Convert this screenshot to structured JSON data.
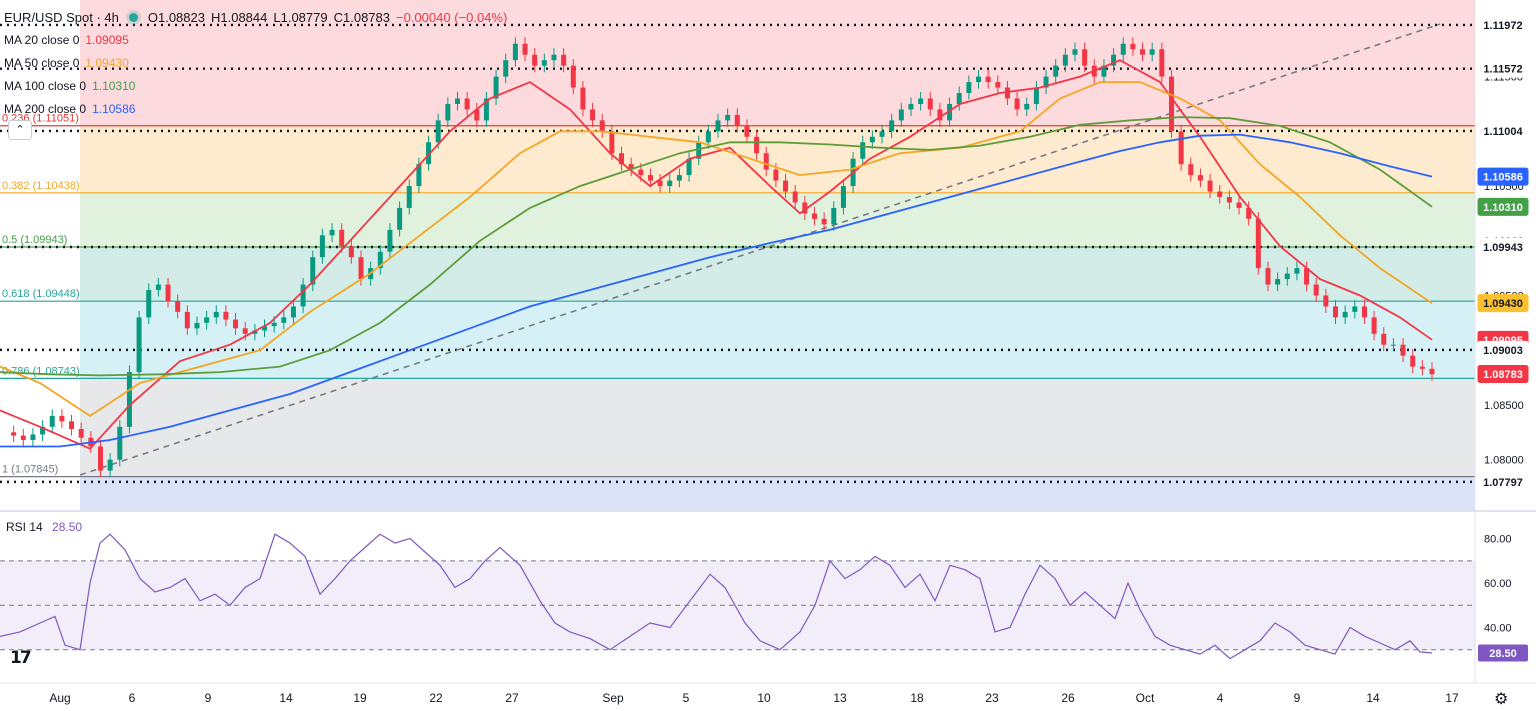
{
  "chart_data": [
    {
      "type": "candlestick",
      "title": "EUR/USD Spot · 4h",
      "ohlc": {
        "open": "O1.08823",
        "high": "H1.08844",
        "low": "L1.08779",
        "close": "C1.08783",
        "change": "−0.00040 (−0.04%)"
      },
      "ylim": [
        1.0754,
        1.122
      ],
      "x_ticks": [
        "Aug",
        "6",
        "9",
        "14",
        "19",
        "22",
        "27",
        "Sep",
        "5",
        "10",
        "13",
        "18",
        "23",
        "26",
        "Oct",
        "4",
        "9",
        "14",
        "17"
      ],
      "y_ticks": [
        "1.11500",
        "1.11000",
        "1.10500",
        "1.10000",
        "1.09500",
        "1.09000",
        "1.08500",
        "1.08000"
      ],
      "moving_averages": [
        {
          "name": "MA 20 close 0",
          "value": "1.09095",
          "color": "#f23645",
          "points": [
            [
              0,
              1.0845
            ],
            [
              40,
              1.083
            ],
            [
              90,
              1.081
            ],
            [
              130,
              1.085
            ],
            [
              180,
              1.089
            ],
            [
              230,
              1.0905
            ],
            [
              270,
              1.0925
            ],
            [
              310,
              1.096
            ],
            [
              360,
              1.101
            ],
            [
              410,
              1.106
            ],
            [
              450,
              1.11
            ],
            [
              490,
              1.113
            ],
            [
              530,
              1.1145
            ],
            [
              570,
              1.112
            ],
            [
              610,
              1.108
            ],
            [
              650,
              1.105
            ],
            [
              690,
              1.1075
            ],
            [
              730,
              1.1085
            ],
            [
              770,
              1.105
            ],
            [
              800,
              1.1025
            ],
            [
              830,
              1.1045
            ],
            [
              870,
              1.1075
            ],
            [
              910,
              1.1095
            ],
            [
              960,
              1.1125
            ],
            [
              1000,
              1.1135
            ],
            [
              1040,
              1.114
            ],
            [
              1080,
              1.115
            ],
            [
              1120,
              1.1165
            ],
            [
              1160,
              1.1145
            ],
            [
              1200,
              1.1095
            ],
            [
              1240,
              1.104
            ],
            [
              1280,
              1.0995
            ],
            [
              1320,
              1.0965
            ],
            [
              1360,
              1.095
            ],
            [
              1400,
              1.093
            ],
            [
              1432,
              1.09095
            ]
          ]
        },
        {
          "name": "MA 50 close 0",
          "value": "1.09430",
          "color": "#f5a623",
          "points": [
            [
              0,
              1.0885
            ],
            [
              40,
              1.087
            ],
            [
              90,
              1.084
            ],
            [
              140,
              1.087
            ],
            [
              200,
              1.0885
            ],
            [
              260,
              1.09
            ],
            [
              310,
              1.0935
            ],
            [
              370,
              1.097
            ],
            [
              420,
              1.1005
            ],
            [
              470,
              1.104
            ],
            [
              520,
              1.108
            ],
            [
              560,
              1.11
            ],
            [
              600,
              1.11
            ],
            [
              650,
              1.1095
            ],
            [
              700,
              1.109
            ],
            [
              750,
              1.1075
            ],
            [
              800,
              1.106
            ],
            [
              850,
              1.1065
            ],
            [
              900,
              1.108
            ],
            [
              960,
              1.1085
            ],
            [
              1020,
              1.11
            ],
            [
              1060,
              1.113
            ],
            [
              1100,
              1.1145
            ],
            [
              1140,
              1.1145
            ],
            [
              1180,
              1.113
            ],
            [
              1220,
              1.111
            ],
            [
              1260,
              1.107
            ],
            [
              1300,
              1.104
            ],
            [
              1340,
              1.1005
            ],
            [
              1380,
              1.0975
            ],
            [
              1432,
              1.0943
            ]
          ]
        },
        {
          "name": "MA 100 close 0",
          "value": "1.10310",
          "color": "#5d9c3a",
          "points": [
            [
              0,
              1.088
            ],
            [
              50,
              1.0878
            ],
            [
              100,
              1.0877
            ],
            [
              160,
              1.0878
            ],
            [
              220,
              1.088
            ],
            [
              280,
              1.0885
            ],
            [
              330,
              1.09
            ],
            [
              380,
              1.0925
            ],
            [
              430,
              1.096
            ],
            [
              480,
              1.1
            ],
            [
              530,
              1.103
            ],
            [
              580,
              1.105
            ],
            [
              630,
              1.1065
            ],
            [
              680,
              1.108
            ],
            [
              730,
              1.109
            ],
            [
              780,
              1.109
            ],
            [
              830,
              1.1088
            ],
            [
              880,
              1.1085
            ],
            [
              930,
              1.1083
            ],
            [
              980,
              1.1087
            ],
            [
              1030,
              1.1095
            ],
            [
              1080,
              1.1106
            ],
            [
              1130,
              1.111
            ],
            [
              1180,
              1.1113
            ],
            [
              1230,
              1.1112
            ],
            [
              1280,
              1.1105
            ],
            [
              1330,
              1.109
            ],
            [
              1380,
              1.1065
            ],
            [
              1432,
              1.1031
            ]
          ]
        },
        {
          "name": "MA 200 close 0",
          "value": "1.10586",
          "color": "#2962ff",
          "points": [
            [
              0,
              1.0812
            ],
            [
              60,
              1.0812
            ],
            [
              110,
              1.0818
            ],
            [
              170,
              1.083
            ],
            [
              230,
              1.0845
            ],
            [
              290,
              1.086
            ],
            [
              350,
              1.088
            ],
            [
              410,
              1.09
            ],
            [
              470,
              1.092
            ],
            [
              530,
              1.094
            ],
            [
              590,
              1.0955
            ],
            [
              650,
              1.097
            ],
            [
              710,
              1.0985
            ],
            [
              770,
              1.0998
            ],
            [
              830,
              1.101
            ],
            [
              890,
              1.1025
            ],
            [
              950,
              1.104
            ],
            [
              1010,
              1.1055
            ],
            [
              1070,
              1.107
            ],
            [
              1120,
              1.1082
            ],
            [
              1160,
              1.109
            ],
            [
              1200,
              1.1096
            ],
            [
              1240,
              1.1097
            ],
            [
              1290,
              1.109
            ],
            [
              1340,
              1.108
            ],
            [
              1390,
              1.1068
            ],
            [
              1432,
              1.10586
            ]
          ]
        }
      ],
      "candles_close": [
        1.0825,
        1.0822,
        1.0818,
        1.0823,
        1.083,
        1.084,
        1.0835,
        1.0828,
        1.082,
        1.0812,
        1.079,
        1.08,
        1.083,
        1.088,
        1.093,
        1.0955,
        1.096,
        1.0945,
        1.0935,
        1.092,
        1.0925,
        1.093,
        1.0935,
        1.0928,
        1.092,
        1.0915,
        1.0918,
        1.0922,
        1.0925,
        1.093,
        1.094,
        1.096,
        1.0985,
        1.1005,
        1.101,
        1.0995,
        1.0985,
        1.0965,
        1.0975,
        1.099,
        1.101,
        1.103,
        1.105,
        1.107,
        1.109,
        1.111,
        1.1125,
        1.113,
        1.112,
        1.111,
        1.113,
        1.115,
        1.1165,
        1.118,
        1.117,
        1.116,
        1.1165,
        1.117,
        1.116,
        1.114,
        1.112,
        1.111,
        1.11,
        1.108,
        1.107,
        1.1065,
        1.106,
        1.1055,
        1.105,
        1.1055,
        1.106,
        1.1075,
        1.109,
        1.11,
        1.111,
        1.1115,
        1.1105,
        1.1095,
        1.108,
        1.1065,
        1.1055,
        1.1045,
        1.1035,
        1.1025,
        1.102,
        1.1015,
        1.103,
        1.105,
        1.1075,
        1.109,
        1.1095,
        1.11,
        1.111,
        1.112,
        1.1125,
        1.113,
        1.112,
        1.111,
        1.1125,
        1.1135,
        1.1145,
        1.115,
        1.1145,
        1.114,
        1.113,
        1.112,
        1.1125,
        1.114,
        1.115,
        1.116,
        1.117,
        1.1175,
        1.116,
        1.115,
        1.116,
        1.117,
        1.118,
        1.1175,
        1.117,
        1.1175,
        1.115,
        1.11,
        1.107,
        1.106,
        1.1055,
        1.1045,
        1.104,
        1.1035,
        1.103,
        1.102,
        1.0975,
        1.096,
        1.0965,
        1.097,
        1.0975,
        1.096,
        1.095,
        1.094,
        1.093,
        1.0935,
        1.094,
        1.093,
        1.0915,
        1.0905,
        1.0905,
        1.0895,
        1.0885,
        1.0883,
        1.0878
      ],
      "fib_levels": [
        {
          "label": "0.236 (1.11051)",
          "value": 1.11051
        },
        {
          "label": "0.382 (1.10438)",
          "value": 1.10438
        },
        {
          "label": "0.5 (1.09943)",
          "value": 1.09943
        },
        {
          "label": "0.618 (1.09448)",
          "value": 1.09448
        },
        {
          "label": "0.786 (1.08743)",
          "value": 1.08743
        },
        {
          "label": "1 (1.07845)",
          "value": 1.07845
        }
      ],
      "horizontal_levels": [
        "1.11972",
        "1.11572",
        "1.11004",
        "1.09943",
        "1.09003",
        "1.07797"
      ],
      "price_tags": [
        {
          "text": "1.11972",
          "value": 1.11972,
          "bg": "#ffffff",
          "fg": "#131722"
        },
        {
          "text": "1.11572",
          "value": 1.11572,
          "bg": "#ffffff",
          "fg": "#131722"
        },
        {
          "text": "1.11004",
          "value": 1.11004,
          "bg": "#ffffff",
          "fg": "#131722"
        },
        {
          "text": "1.10586",
          "value": 1.10586,
          "bg": "#2962ff",
          "fg": "#ffffff"
        },
        {
          "text": "1.10310",
          "value": 1.1031,
          "bg": "#43a047",
          "fg": "#ffffff"
        },
        {
          "text": "1.09943",
          "value": 1.09943,
          "bg": "#ffffff",
          "fg": "#131722"
        },
        {
          "text": "1.09430",
          "value": 1.0943,
          "bg": "#fbc02d",
          "fg": "#131722"
        },
        {
          "text": "1.09095",
          "value": 1.09095,
          "bg": "#f23645",
          "fg": "#ffffff"
        },
        {
          "text": "1.09003",
          "value": 1.09003,
          "bg": "#ffffff",
          "fg": "#131722"
        },
        {
          "text": "1.08783",
          "value": 1.08783,
          "bg": "#f23645",
          "fg": "#ffffff"
        },
        {
          "text": "1.07797",
          "value": 1.07797,
          "bg": "#ffffff",
          "fg": "#131722"
        }
      ]
    },
    {
      "type": "line",
      "title": "RSI 14",
      "value": "28.50",
      "ylim": [
        15,
        92
      ],
      "y_ticks": [
        "80.00",
        "60.00",
        "40.00"
      ],
      "reference_levels": [
        70,
        50,
        30
      ],
      "points": [
        [
          0,
          36
        ],
        [
          20,
          38
        ],
        [
          40,
          42
        ],
        [
          55,
          45
        ],
        [
          65,
          32
        ],
        [
          80,
          30
        ],
        [
          90,
          60
        ],
        [
          100,
          78
        ],
        [
          110,
          82
        ],
        [
          125,
          75
        ],
        [
          140,
          62
        ],
        [
          155,
          56
        ],
        [
          170,
          58
        ],
        [
          185,
          62
        ],
        [
          200,
          52
        ],
        [
          215,
          55
        ],
        [
          230,
          50
        ],
        [
          245,
          58
        ],
        [
          260,
          62
        ],
        [
          275,
          82
        ],
        [
          290,
          78
        ],
        [
          305,
          72
        ],
        [
          320,
          55
        ],
        [
          335,
          62
        ],
        [
          350,
          70
        ],
        [
          365,
          76
        ],
        [
          380,
          82
        ],
        [
          395,
          78
        ],
        [
          410,
          80
        ],
        [
          425,
          74
        ],
        [
          440,
          68
        ],
        [
          455,
          58
        ],
        [
          470,
          62
        ],
        [
          485,
          70
        ],
        [
          500,
          76
        ],
        [
          520,
          68
        ],
        [
          540,
          52
        ],
        [
          555,
          42
        ],
        [
          570,
          38
        ],
        [
          590,
          35
        ],
        [
          610,
          30
        ],
        [
          630,
          36
        ],
        [
          650,
          42
        ],
        [
          670,
          40
        ],
        [
          690,
          52
        ],
        [
          710,
          64
        ],
        [
          725,
          58
        ],
        [
          745,
          42
        ],
        [
          760,
          34
        ],
        [
          780,
          30
        ],
        [
          800,
          38
        ],
        [
          815,
          50
        ],
        [
          830,
          70
        ],
        [
          845,
          62
        ],
        [
          860,
          66
        ],
        [
          875,
          72
        ],
        [
          890,
          68
        ],
        [
          905,
          58
        ],
        [
          920,
          64
        ],
        [
          935,
          52
        ],
        [
          950,
          68
        ],
        [
          965,
          66
        ],
        [
          980,
          62
        ],
        [
          995,
          38
        ],
        [
          1010,
          40
        ],
        [
          1025,
          55
        ],
        [
          1040,
          68
        ],
        [
          1055,
          62
        ],
        [
          1070,
          50
        ],
        [
          1085,
          56
        ],
        [
          1100,
          50
        ],
        [
          1115,
          44
        ],
        [
          1128,
          60
        ],
        [
          1140,
          48
        ],
        [
          1155,
          36
        ],
        [
          1170,
          32
        ],
        [
          1185,
          30
        ],
        [
          1200,
          28
        ],
        [
          1215,
          32
        ],
        [
          1230,
          26
        ],
        [
          1245,
          30
        ],
        [
          1260,
          34
        ],
        [
          1275,
          42
        ],
        [
          1290,
          38
        ],
        [
          1305,
          32
        ],
        [
          1320,
          30
        ],
        [
          1335,
          28
        ],
        [
          1350,
          40
        ],
        [
          1365,
          36
        ],
        [
          1380,
          33
        ],
        [
          1395,
          30
        ],
        [
          1410,
          34
        ],
        [
          1420,
          29
        ],
        [
          1432,
          28.5
        ]
      ]
    }
  ]
}
